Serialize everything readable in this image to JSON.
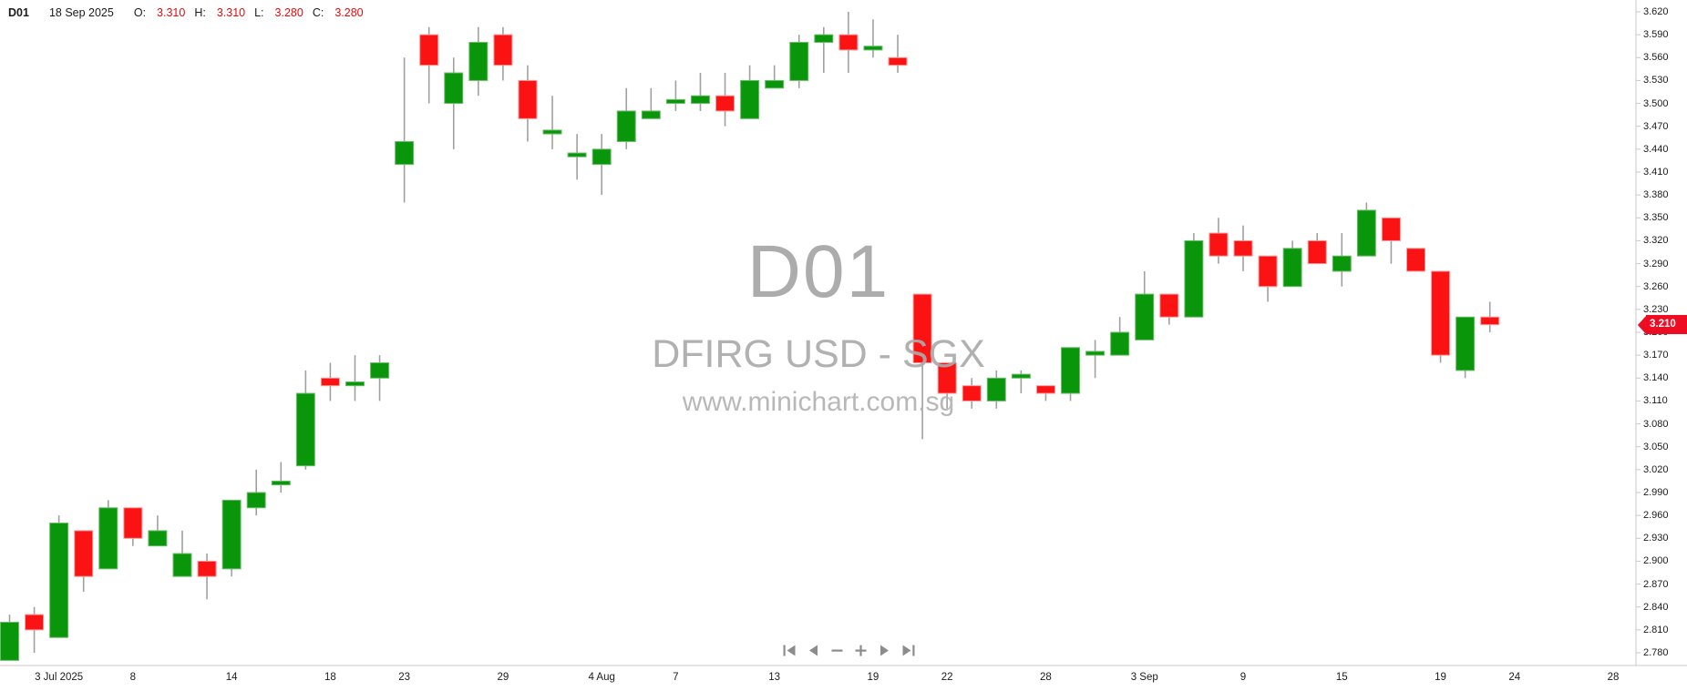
{
  "header": {
    "symbol": "D01",
    "date": "18 Sep 2025",
    "open_label": "O:",
    "open": "3.310",
    "high_label": "H:",
    "high": "3.310",
    "low_label": "L:",
    "low": "3.280",
    "close_label": "C:",
    "close": "3.280"
  },
  "watermark": {
    "symbol": "D01",
    "name": "DFIRG USD - SGX",
    "url": "www.minichart.com.sg"
  },
  "price_tag": {
    "value": "3.210",
    "price": 3.21
  },
  "colors": {
    "up": "#0a960a",
    "up_border": "#6cbc6c",
    "down": "#fb1212",
    "down_border": "#fc9a9a",
    "wick": "#a0a0a0",
    "axis_line": "#c9c9c9",
    "axis_text": "#1b1b1b",
    "ohlc_value": "#e50b0b",
    "watermark": "#a6a6a6",
    "tag_bg": "#ee0c22",
    "tag_text": "#ffffff",
    "nav_icon": "#8c8c8c"
  },
  "nav": {
    "buttons": [
      {
        "name": "skip-to-start"
      },
      {
        "name": "step-back"
      },
      {
        "name": "zoom-out"
      },
      {
        "name": "zoom-in"
      },
      {
        "name": "step-forward"
      },
      {
        "name": "skip-to-end"
      }
    ]
  },
  "chart_data": {
    "type": "candlestick",
    "symbol": "D01",
    "market": "DFIRG USD - SGX",
    "ylim": [
      2.78,
      3.62
    ],
    "y_step": 0.03,
    "grid": false,
    "y_axis_labels": [
      "3.620",
      "3.590",
      "3.560",
      "3.530",
      "3.500",
      "3.470",
      "3.440",
      "3.410",
      "3.380",
      "3.350",
      "3.320",
      "3.290",
      "3.260",
      "3.230",
      "3.200",
      "3.170",
      "3.140",
      "3.110",
      "3.080",
      "3.050",
      "3.020",
      "2.990",
      "2.960",
      "2.930",
      "2.900",
      "2.870",
      "2.840",
      "2.810",
      "2.780"
    ],
    "x_ticks": [
      {
        "index": 2,
        "label": "3 Jul 2025"
      },
      {
        "index": 5,
        "label": "8"
      },
      {
        "index": 9,
        "label": "14"
      },
      {
        "index": 13,
        "label": "18"
      },
      {
        "index": 16,
        "label": "23"
      },
      {
        "index": 20,
        "label": "29"
      },
      {
        "index": 24,
        "label": "4 Aug"
      },
      {
        "index": 27,
        "label": "7"
      },
      {
        "index": 31,
        "label": "13"
      },
      {
        "index": 35,
        "label": "19"
      },
      {
        "index": 38,
        "label": "22"
      },
      {
        "index": 42,
        "label": "28"
      },
      {
        "index": 46,
        "label": "3 Sep"
      },
      {
        "index": 50,
        "label": "9"
      },
      {
        "index": 54,
        "label": "15"
      },
      {
        "index": 58,
        "label": "19"
      },
      {
        "index": 61,
        "label": "24"
      },
      {
        "index": 65,
        "label": "28"
      }
    ],
    "candles": [
      {
        "date": "1 Jul",
        "o": 2.77,
        "h": 2.83,
        "l": 2.77,
        "c": 2.82
      },
      {
        "date": "2 Jul",
        "o": 2.83,
        "h": 2.84,
        "l": 2.78,
        "c": 2.81
      },
      {
        "date": "3 Jul",
        "o": 2.8,
        "h": 2.96,
        "l": 2.8,
        "c": 2.95
      },
      {
        "date": "4 Jul",
        "o": 2.94,
        "h": 2.94,
        "l": 2.86,
        "c": 2.88
      },
      {
        "date": "7 Jul",
        "o": 2.89,
        "h": 2.98,
        "l": 2.89,
        "c": 2.97
      },
      {
        "date": "8 Jul",
        "o": 2.97,
        "h": 2.97,
        "l": 2.92,
        "c": 2.93
      },
      {
        "date": "9 Jul",
        "o": 2.92,
        "h": 2.96,
        "l": 2.92,
        "c": 2.94
      },
      {
        "date": "10 Jul",
        "o": 2.88,
        "h": 2.94,
        "l": 2.88,
        "c": 2.91
      },
      {
        "date": "11 Jul",
        "o": 2.9,
        "h": 2.91,
        "l": 2.85,
        "c": 2.88
      },
      {
        "date": "14 Jul",
        "o": 2.89,
        "h": 2.98,
        "l": 2.88,
        "c": 2.98
      },
      {
        "date": "15 Jul",
        "o": 2.97,
        "h": 3.02,
        "l": 2.96,
        "c": 2.99
      },
      {
        "date": "16 Jul",
        "o": 3.0,
        "h": 3.03,
        "l": 2.99,
        "c": 3.005
      },
      {
        "date": "17 Jul",
        "o": 3.025,
        "h": 3.15,
        "l": 3.02,
        "c": 3.12
      },
      {
        "date": "18 Jul",
        "o": 3.14,
        "h": 3.16,
        "l": 3.11,
        "c": 3.13
      },
      {
        "date": "21 Jul",
        "o": 3.13,
        "h": 3.17,
        "l": 3.11,
        "c": 3.135
      },
      {
        "date": "22 Jul",
        "o": 3.14,
        "h": 3.17,
        "l": 3.11,
        "c": 3.16
      },
      {
        "date": "23 Jul",
        "o": 3.42,
        "h": 3.56,
        "l": 3.37,
        "c": 3.45
      },
      {
        "date": "24 Jul",
        "o": 3.59,
        "h": 3.6,
        "l": 3.5,
        "c": 3.55
      },
      {
        "date": "25 Jul",
        "o": 3.5,
        "h": 3.56,
        "l": 3.44,
        "c": 3.54
      },
      {
        "date": "28 Jul",
        "o": 3.53,
        "h": 3.6,
        "l": 3.51,
        "c": 3.58
      },
      {
        "date": "29 Jul",
        "o": 3.59,
        "h": 3.6,
        "l": 3.53,
        "c": 3.55
      },
      {
        "date": "30 Jul",
        "o": 3.53,
        "h": 3.55,
        "l": 3.45,
        "c": 3.48
      },
      {
        "date": "31 Jul",
        "o": 3.46,
        "h": 3.51,
        "l": 3.44,
        "c": 3.465
      },
      {
        "date": "1 Aug",
        "o": 3.43,
        "h": 3.46,
        "l": 3.4,
        "c": 3.435
      },
      {
        "date": "4 Aug",
        "o": 3.42,
        "h": 3.46,
        "l": 3.38,
        "c": 3.44
      },
      {
        "date": "5 Aug",
        "o": 3.45,
        "h": 3.52,
        "l": 3.44,
        "c": 3.49
      },
      {
        "date": "6 Aug",
        "o": 3.48,
        "h": 3.52,
        "l": 3.48,
        "c": 3.49
      },
      {
        "date": "7 Aug",
        "o": 3.5,
        "h": 3.53,
        "l": 3.49,
        "c": 3.505
      },
      {
        "date": "8 Aug",
        "o": 3.5,
        "h": 3.54,
        "l": 3.49,
        "c": 3.51
      },
      {
        "date": "11 Aug",
        "o": 3.51,
        "h": 3.54,
        "l": 3.47,
        "c": 3.49
      },
      {
        "date": "12 Aug",
        "o": 3.48,
        "h": 3.55,
        "l": 3.48,
        "c": 3.53
      },
      {
        "date": "13 Aug",
        "o": 3.52,
        "h": 3.55,
        "l": 3.52,
        "c": 3.53
      },
      {
        "date": "14 Aug",
        "o": 3.53,
        "h": 3.59,
        "l": 3.52,
        "c": 3.58
      },
      {
        "date": "15 Aug",
        "o": 3.58,
        "h": 3.6,
        "l": 3.54,
        "c": 3.59
      },
      {
        "date": "18 Aug",
        "o": 3.59,
        "h": 3.62,
        "l": 3.54,
        "c": 3.57
      },
      {
        "date": "19 Aug",
        "o": 3.57,
        "h": 3.61,
        "l": 3.56,
        "c": 3.575
      },
      {
        "date": "20 Aug",
        "o": 3.56,
        "h": 3.59,
        "l": 3.54,
        "c": 3.55
      },
      {
        "date": "21 Aug",
        "o": 3.25,
        "h": 3.25,
        "l": 3.06,
        "c": 3.16
      },
      {
        "date": "22 Aug",
        "o": 3.16,
        "h": 3.16,
        "l": 3.1,
        "c": 3.12
      },
      {
        "date": "25 Aug",
        "o": 3.13,
        "h": 3.14,
        "l": 3.1,
        "c": 3.11
      },
      {
        "date": "26 Aug",
        "o": 3.11,
        "h": 3.15,
        "l": 3.1,
        "c": 3.14
      },
      {
        "date": "27 Aug",
        "o": 3.14,
        "h": 3.15,
        "l": 3.12,
        "c": 3.145
      },
      {
        "date": "28 Aug",
        "o": 3.13,
        "h": 3.13,
        "l": 3.11,
        "c": 3.12
      },
      {
        "date": "29 Aug",
        "o": 3.12,
        "h": 3.18,
        "l": 3.11,
        "c": 3.18
      },
      {
        "date": "1 Sep",
        "o": 3.17,
        "h": 3.19,
        "l": 3.14,
        "c": 3.175
      },
      {
        "date": "2 Sep",
        "o": 3.17,
        "h": 3.22,
        "l": 3.17,
        "c": 3.2
      },
      {
        "date": "3 Sep",
        "o": 3.19,
        "h": 3.28,
        "l": 3.19,
        "c": 3.25
      },
      {
        "date": "4 Sep",
        "o": 3.25,
        "h": 3.25,
        "l": 3.21,
        "c": 3.22
      },
      {
        "date": "5 Sep",
        "o": 3.22,
        "h": 3.33,
        "l": 3.22,
        "c": 3.32
      },
      {
        "date": "8 Sep",
        "o": 3.33,
        "h": 3.35,
        "l": 3.29,
        "c": 3.3
      },
      {
        "date": "9 Sep",
        "o": 3.32,
        "h": 3.34,
        "l": 3.28,
        "c": 3.3
      },
      {
        "date": "10 Sep",
        "o": 3.3,
        "h": 3.3,
        "l": 3.24,
        "c": 3.26
      },
      {
        "date": "11 Sep",
        "o": 3.26,
        "h": 3.32,
        "l": 3.26,
        "c": 3.31
      },
      {
        "date": "12 Sep",
        "o": 3.32,
        "h": 3.33,
        "l": 3.29,
        "c": 3.29
      },
      {
        "date": "15 Sep",
        "o": 3.28,
        "h": 3.33,
        "l": 3.26,
        "c": 3.3
      },
      {
        "date": "16 Sep",
        "o": 3.3,
        "h": 3.37,
        "l": 3.3,
        "c": 3.36
      },
      {
        "date": "17 Sep",
        "o": 3.35,
        "h": 3.35,
        "l": 3.29,
        "c": 3.32
      },
      {
        "date": "18 Sep",
        "o": 3.31,
        "h": 3.31,
        "l": 3.28,
        "c": 3.28
      },
      {
        "date": "19 Sep",
        "o": 3.28,
        "h": 3.28,
        "l": 3.16,
        "c": 3.17
      },
      {
        "date": "22 Sep",
        "o": 3.15,
        "h": 3.22,
        "l": 3.14,
        "c": 3.22
      },
      {
        "date": "23 Sep",
        "o": 3.22,
        "h": 3.24,
        "l": 3.2,
        "c": 3.21
      }
    ]
  }
}
